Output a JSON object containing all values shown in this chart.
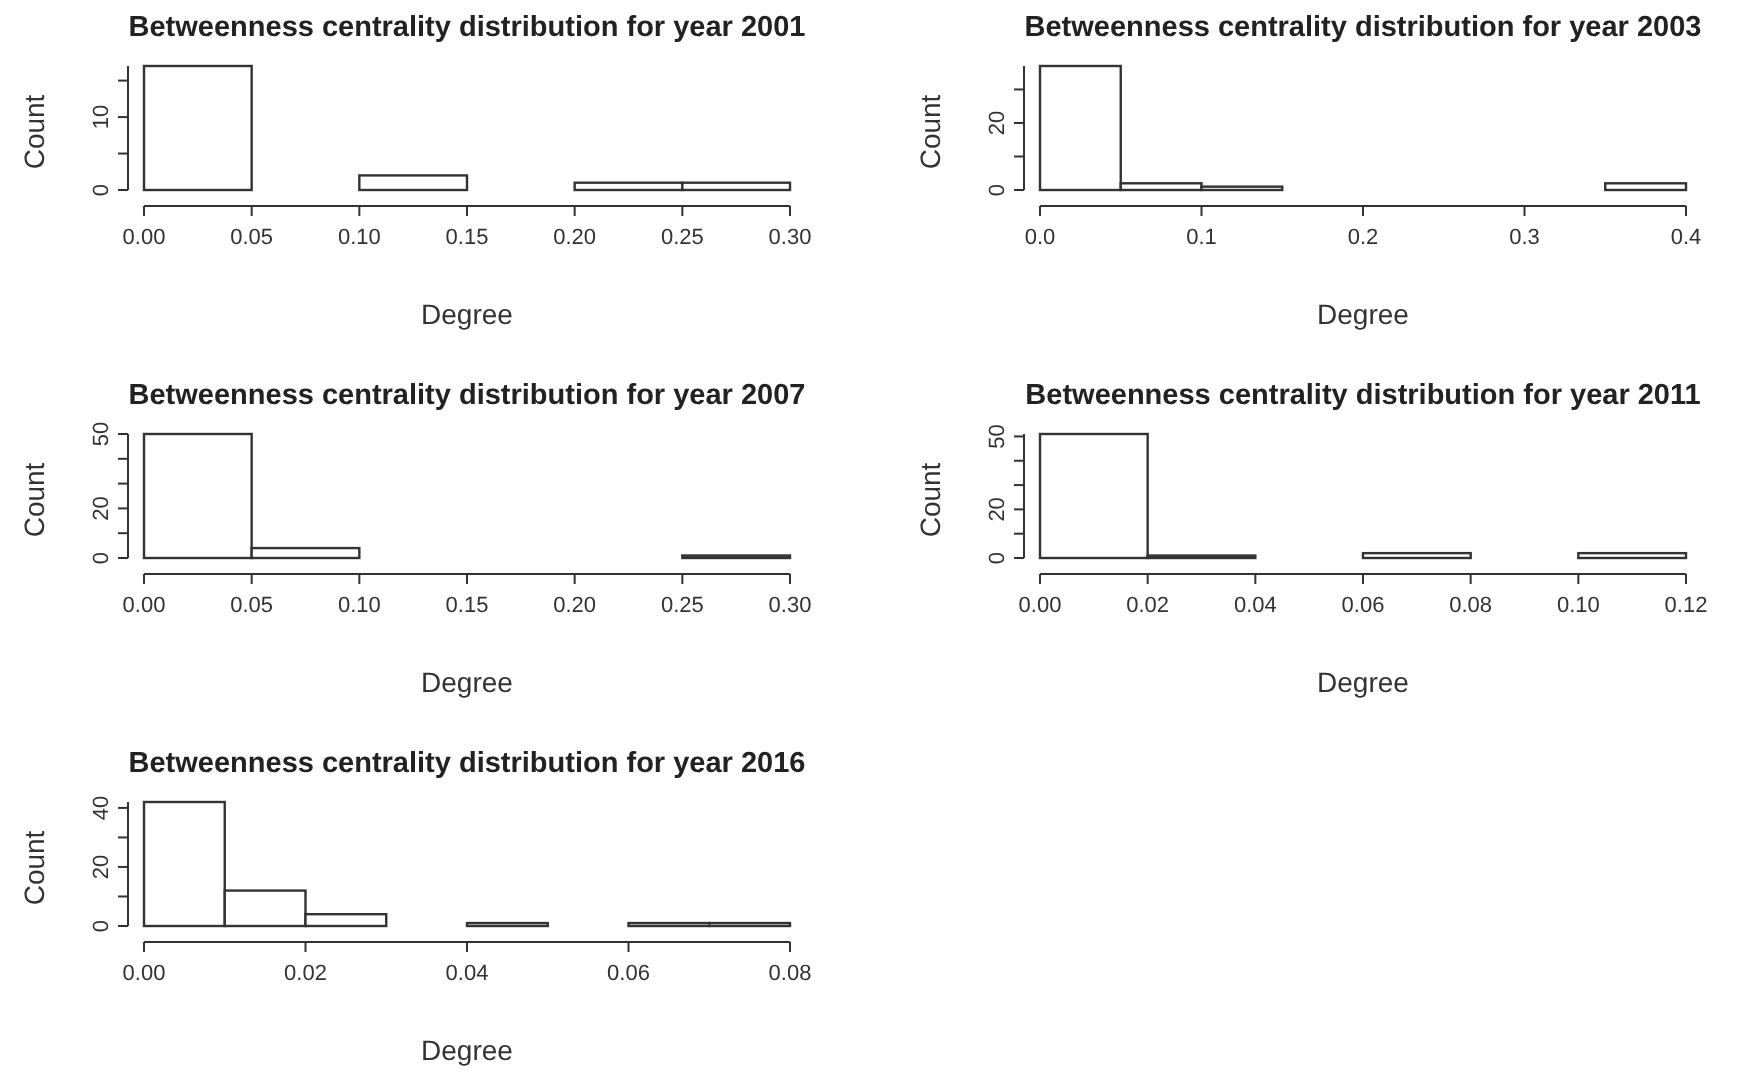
{
  "chart_data": [
    {
      "type": "histogram",
      "title": "Betweenness centrality distribution for year 2001",
      "xlabel": "Degree",
      "ylabel": "Count",
      "color": "#ffffff",
      "bins": [
        0,
        0.05,
        0.1,
        0.15,
        0.2,
        0.25,
        0.3
      ],
      "values": [
        17,
        0,
        2,
        0,
        1,
        1
      ],
      "xlim": [
        0,
        0.3
      ],
      "ylim": [
        0,
        17
      ],
      "xticks": [
        {
          "value": 0,
          "label": "0.00"
        },
        {
          "value": 0.05,
          "label": "0.05"
        },
        {
          "value": 0.1,
          "label": "0.10"
        },
        {
          "value": 0.15,
          "label": "0.15"
        },
        {
          "value": 0.2,
          "label": "0.20"
        },
        {
          "value": 0.25,
          "label": "0.25"
        },
        {
          "value": 0.3,
          "label": "0.30"
        }
      ],
      "yticks": [
        0,
        {
          "value": 5,
          "label": null
        },
        10,
        {
          "value": 15,
          "label": null
        }
      ]
    },
    {
      "type": "histogram",
      "title": "Betweenness centrality distribution for year 2003",
      "xlabel": "Degree",
      "ylabel": "Count",
      "color": "#ffffff",
      "bins": [
        0,
        0.05,
        0.1,
        0.15,
        0.2,
        0.25,
        0.3,
        0.35,
        0.4
      ],
      "values": [
        37,
        2,
        1,
        0,
        0,
        0,
        0,
        2
      ],
      "xlim": [
        0,
        0.4
      ],
      "ylim": [
        0,
        37
      ],
      "xticks": [
        {
          "value": 0,
          "label": "0.0"
        },
        0.1,
        0.2,
        0.3,
        0.4
      ],
      "yticks": [
        0,
        {
          "value": 10,
          "label": null
        },
        20,
        {
          "value": 30,
          "label": null
        }
      ]
    },
    {
      "type": "histogram",
      "title": "Betweenness centrality distribution for year 2007",
      "xlabel": "Degree",
      "ylabel": "Count",
      "color": "#ffffff",
      "bins": [
        0,
        0.05,
        0.1,
        0.15,
        0.2,
        0.25,
        0.3
      ],
      "values": [
        50,
        4,
        0,
        0,
        0,
        1
      ],
      "xlim": [
        0,
        0.3
      ],
      "ylim": [
        0,
        50
      ],
      "xticks": [
        {
          "value": 0,
          "label": "0.00"
        },
        {
          "value": 0.05,
          "label": "0.05"
        },
        {
          "value": 0.1,
          "label": "0.10"
        },
        {
          "value": 0.15,
          "label": "0.15"
        },
        {
          "value": 0.2,
          "label": "0.20"
        },
        {
          "value": 0.25,
          "label": "0.25"
        },
        {
          "value": 0.3,
          "label": "0.30"
        }
      ],
      "yticks": [
        0,
        {
          "value": 10,
          "label": null
        },
        20,
        {
          "value": 30,
          "label": null
        },
        {
          "value": 40,
          "label": null
        },
        50
      ]
    },
    {
      "type": "histogram",
      "title": "Betweenness centrality distribution for year 2011",
      "xlabel": "Degree",
      "ylabel": "Count",
      "color": "#ffffff",
      "bins": [
        0,
        0.02,
        0.04,
        0.06,
        0.08,
        0.1,
        0.12
      ],
      "values": [
        51,
        1,
        0,
        2,
        0,
        2
      ],
      "xlim": [
        0,
        0.12
      ],
      "ylim": [
        0,
        51
      ],
      "xticks": [
        {
          "value": 0,
          "label": "0.00"
        },
        0.02,
        0.04,
        0.06,
        0.08,
        {
          "value": 0.1,
          "label": "0.10"
        },
        0.12
      ],
      "yticks": [
        0,
        {
          "value": 10,
          "label": null
        },
        20,
        {
          "value": 30,
          "label": null
        },
        {
          "value": 40,
          "label": null
        },
        50
      ]
    },
    {
      "type": "histogram",
      "title": "Betweenness centrality distribution for year 2016",
      "xlabel": "Degree",
      "ylabel": "Count",
      "color": "#ffffff",
      "bins": [
        0,
        0.01,
        0.02,
        0.03,
        0.04,
        0.05,
        0.06,
        0.07,
        0.08
      ],
      "values": [
        42,
        12,
        4,
        0,
        1,
        0,
        1,
        1
      ],
      "xlim": [
        0,
        0.08
      ],
      "ylim": [
        0,
        42
      ],
      "xticks": [
        {
          "value": 0,
          "label": "0.00"
        },
        0.02,
        0.04,
        0.06,
        0.08
      ],
      "yticks": [
        0,
        {
          "value": 10,
          "label": null
        },
        20,
        {
          "value": 30,
          "label": null
        },
        40
      ]
    }
  ]
}
